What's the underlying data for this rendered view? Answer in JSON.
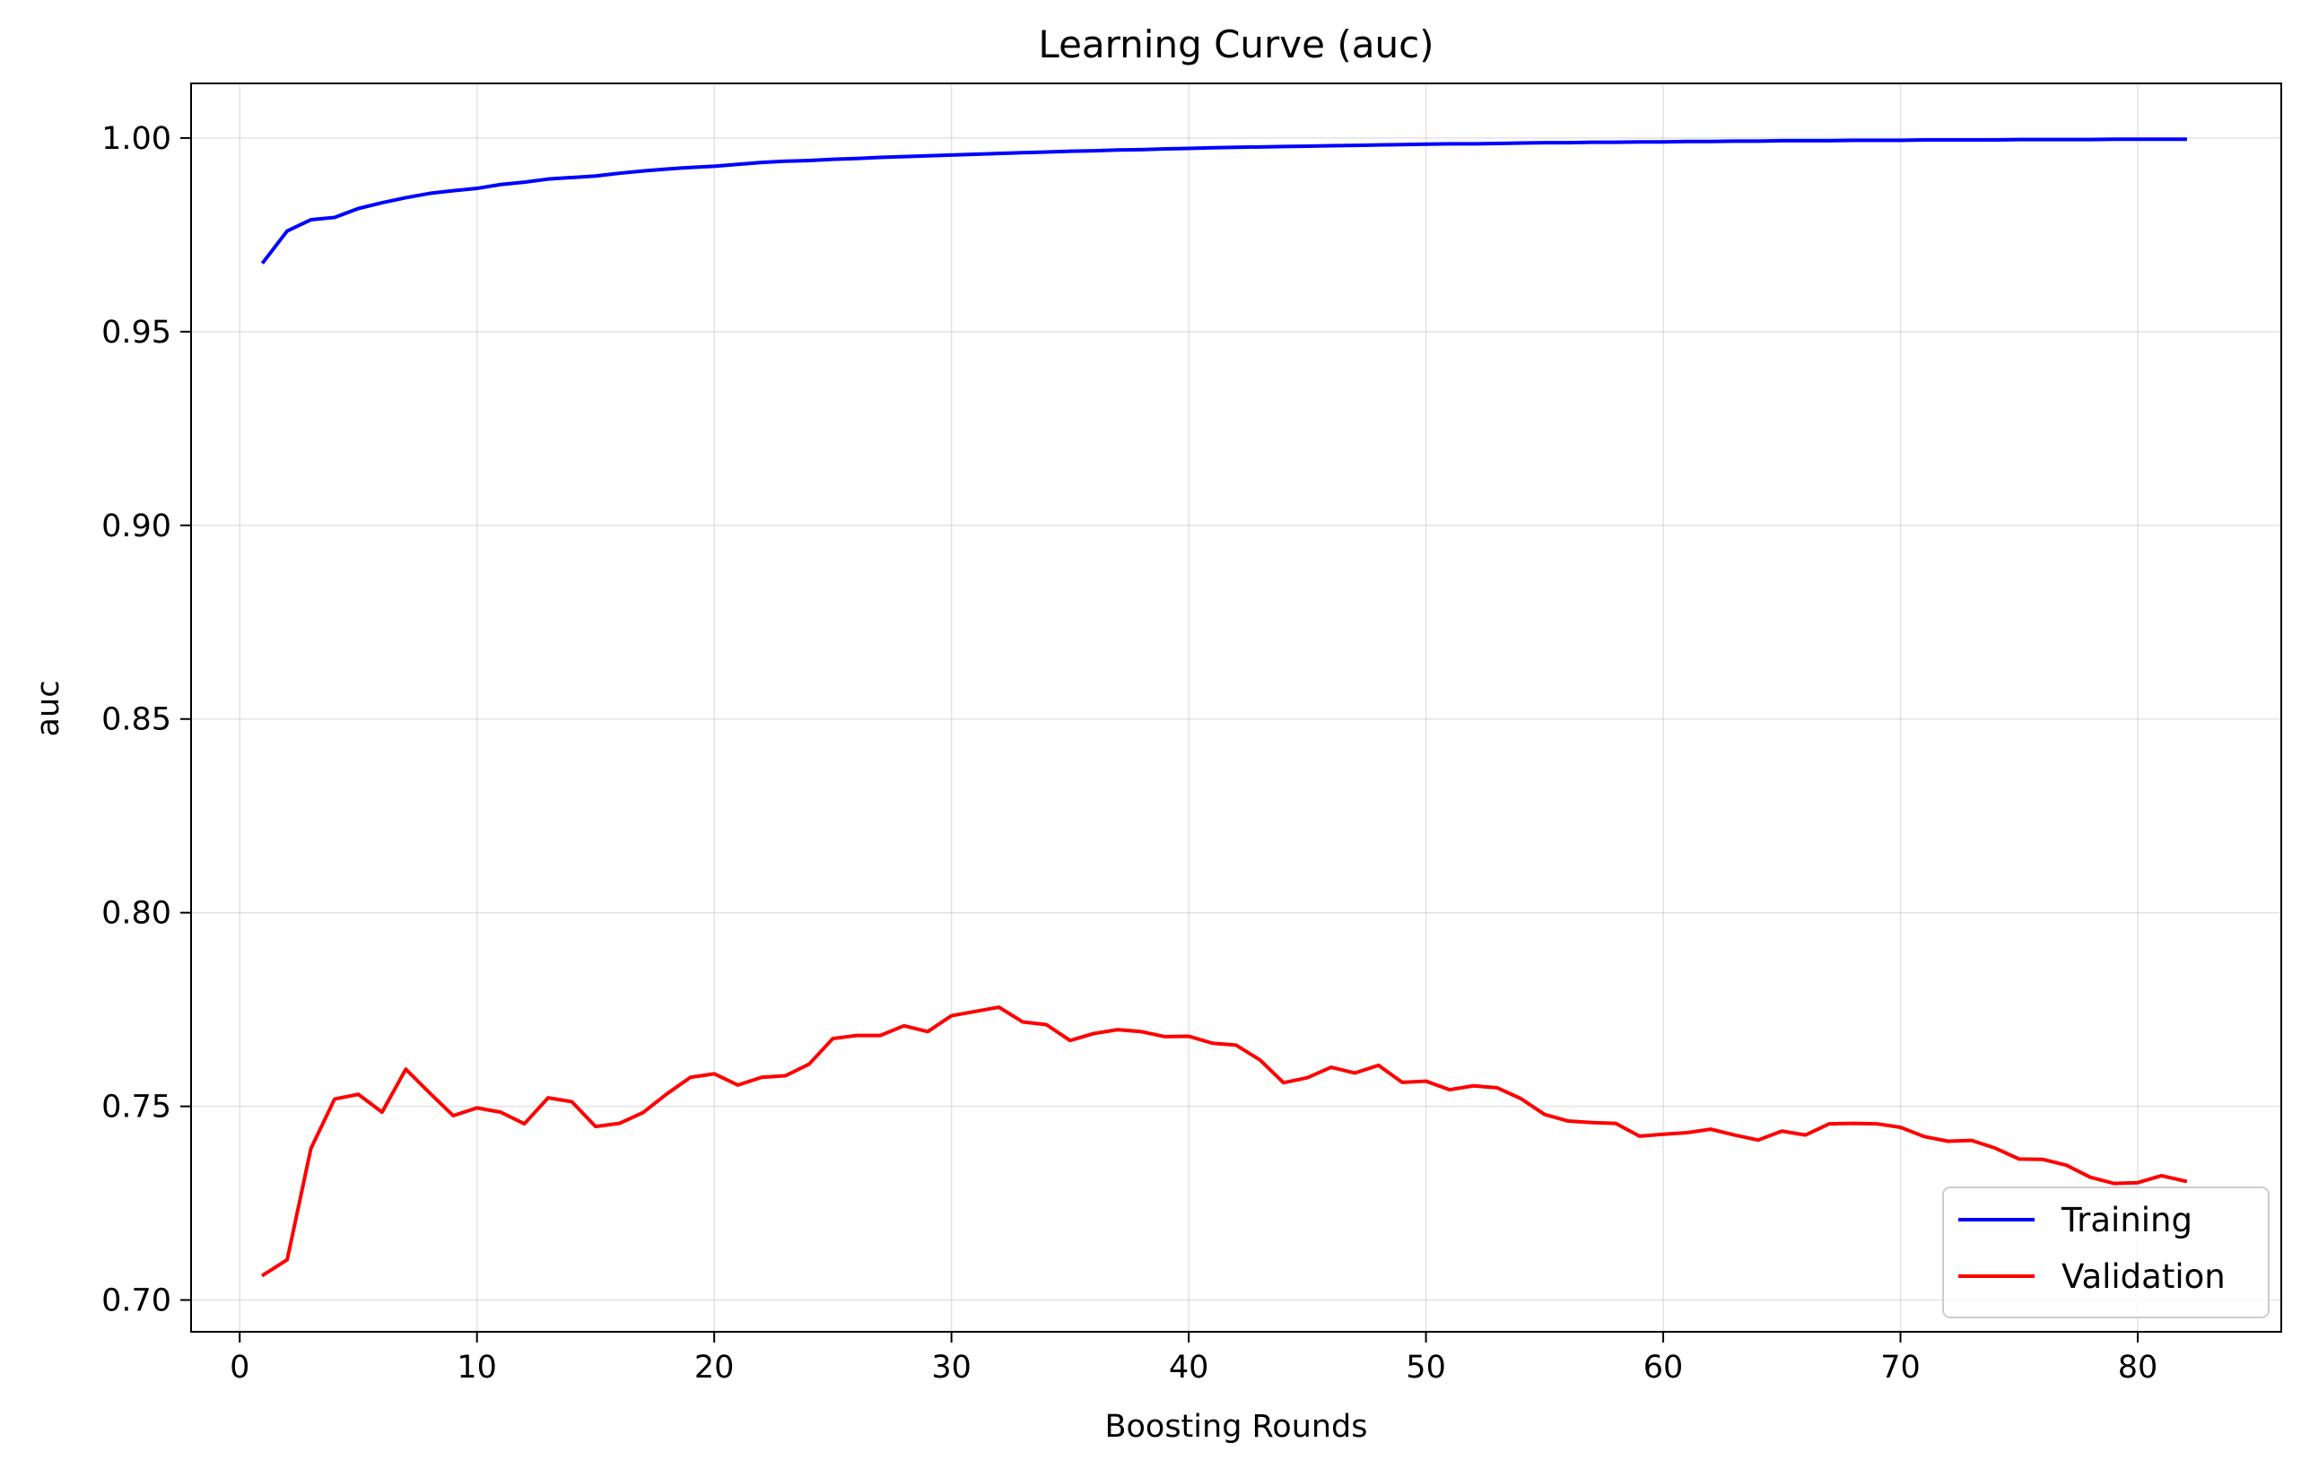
{
  "chart_data": {
    "type": "line",
    "title": "Learning Curve (auc)",
    "xlabel": "Boosting Rounds",
    "ylabel": "auc",
    "xlim": [
      -2.05,
      86.05
    ],
    "ylim": [
      0.6918,
      1.0141
    ],
    "xticks": [
      0,
      10,
      20,
      30,
      40,
      50,
      60,
      70,
      80
    ],
    "yticks": [
      0.7,
      0.75,
      0.8,
      0.85,
      0.9,
      0.95,
      1.0
    ],
    "ytick_labels": [
      "0.70",
      "0.75",
      "0.80",
      "0.85",
      "0.90",
      "0.95",
      "1.00"
    ],
    "grid": true,
    "legend_position": "lower right",
    "x": [
      1,
      2,
      3,
      4,
      5,
      6,
      7,
      8,
      9,
      10,
      11,
      12,
      13,
      14,
      15,
      16,
      17,
      18,
      19,
      20,
      21,
      22,
      23,
      24,
      25,
      26,
      27,
      28,
      29,
      30,
      31,
      32,
      33,
      34,
      35,
      36,
      37,
      38,
      39,
      40,
      41,
      42,
      43,
      44,
      45,
      46,
      47,
      48,
      49,
      50,
      51,
      52,
      53,
      54,
      55,
      56,
      57,
      58,
      59,
      60,
      61,
      62,
      63,
      64,
      65,
      66,
      67,
      68,
      69,
      70,
      71,
      72,
      73,
      74,
      75,
      76,
      77,
      78,
      79,
      80,
      81,
      82
    ],
    "series": [
      {
        "name": "Training",
        "color": "#0000ff",
        "values": [
          0.968,
          0.976,
          0.9789,
          0.9795,
          0.9818,
          0.9833,
          0.9846,
          0.9857,
          0.9864,
          0.987,
          0.988,
          0.9886,
          0.9894,
          0.9898,
          0.9902,
          0.9909,
          0.9915,
          0.992,
          0.9924,
          0.9927,
          0.9932,
          0.9937,
          0.994,
          0.9942,
          0.9945,
          0.9947,
          0.995,
          0.9952,
          0.9954,
          0.9956,
          0.9958,
          0.996,
          0.9962,
          0.9964,
          0.9966,
          0.9967,
          0.9969,
          0.997,
          0.9972,
          0.9973,
          0.9975,
          0.9976,
          0.9977,
          0.9978,
          0.9979,
          0.998,
          0.9981,
          0.9982,
          0.9983,
          0.9984,
          0.9985,
          0.9985,
          0.9986,
          0.9987,
          0.9988,
          0.9988,
          0.9989,
          0.9989,
          0.999,
          0.999,
          0.9991,
          0.9991,
          0.9992,
          0.9992,
          0.9993,
          0.9993,
          0.9993,
          0.9994,
          0.9994,
          0.9994,
          0.9995,
          0.9995,
          0.9995,
          0.9995,
          0.9996,
          0.9996,
          0.9996,
          0.9996,
          0.9997,
          0.9997,
          0.9997,
          0.9997
        ]
      },
      {
        "name": "Validation",
        "color": "#ff0000",
        "values": [
          0.7065,
          0.7104,
          0.7391,
          0.7519,
          0.7531,
          0.7485,
          0.7596,
          0.7535,
          0.7476,
          0.7496,
          0.7485,
          0.7455,
          0.7522,
          0.7512,
          0.7448,
          0.7456,
          0.7484,
          0.7532,
          0.7575,
          0.7584,
          0.7555,
          0.7575,
          0.7579,
          0.7609,
          0.7675,
          0.7683,
          0.7683,
          0.7708,
          0.7693,
          0.7734,
          0.7745,
          0.7756,
          0.7718,
          0.7711,
          0.767,
          0.7688,
          0.7698,
          0.7693,
          0.768,
          0.7681,
          0.7663,
          0.7658,
          0.762,
          0.7561,
          0.7574,
          0.7601,
          0.7586,
          0.7606,
          0.7562,
          0.7565,
          0.7543,
          0.7553,
          0.7548,
          0.752,
          0.7479,
          0.7462,
          0.7458,
          0.7456,
          0.7423,
          0.7428,
          0.7432,
          0.7441,
          0.7426,
          0.7413,
          0.7436,
          0.7426,
          0.7455,
          0.7456,
          0.7455,
          0.7446,
          0.7422,
          0.741,
          0.7412,
          0.7392,
          0.7364,
          0.7363,
          0.7348,
          0.7317,
          0.7301,
          0.7303,
          0.7321,
          0.7307
        ]
      }
    ]
  }
}
